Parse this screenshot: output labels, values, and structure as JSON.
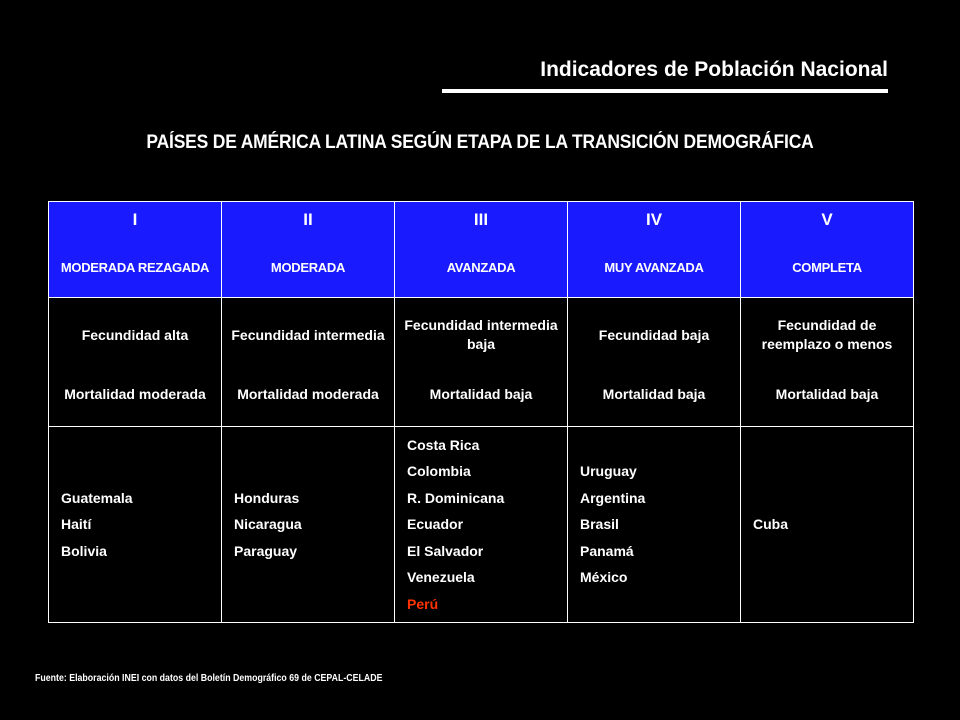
{
  "header": {
    "title": "Indicadores de Población Nacional"
  },
  "main_title": "PAÍSES DE AMÉRICA LATINA SEGÚN ETAPA DE LA TRANSICIÓN DEMOGRÁFICA",
  "colors": {
    "background": "#000000",
    "header_row": "#1a1aff",
    "text": "#ffffff",
    "highlight": "#ff3300"
  },
  "stages": [
    {
      "numeral": "I",
      "name": "MODERADA REZAGADA",
      "fertility": "Fecundidad alta",
      "mortality": "Mortalidad moderada",
      "countries": [
        "Guatemala",
        "Haití",
        "Bolivia"
      ]
    },
    {
      "numeral": "II",
      "name": "MODERADA",
      "fertility": "Fecundidad intermedia",
      "mortality": "Mortalidad moderada",
      "countries": [
        "Honduras",
        "Nicaragua",
        "Paraguay"
      ]
    },
    {
      "numeral": "III",
      "name": "AVANZADA",
      "fertility": "Fecundidad intermedia baja",
      "mortality": "Mortalidad baja",
      "countries": [
        "Costa Rica",
        "Colombia",
        "R. Dominicana",
        "Ecuador",
        "El Salvador",
        "Venezuela",
        "Perú"
      ]
    },
    {
      "numeral": "IV",
      "name": "MUY AVANZADA",
      "fertility": "Fecundidad baja",
      "mortality": "Mortalidad baja",
      "countries": [
        "Uruguay",
        "Argentina",
        "Brasil",
        "Panamá",
        "México"
      ]
    },
    {
      "numeral": "V",
      "name": "COMPLETA",
      "fertility": "Fecundidad de reemplazo o menos",
      "mortality": "Mortalidad baja",
      "countries": [
        "Cuba"
      ]
    }
  ],
  "source": "Fuente: Elaboración INEI con datos del Boletín Demográfico 69 de CEPAL-CELADE"
}
